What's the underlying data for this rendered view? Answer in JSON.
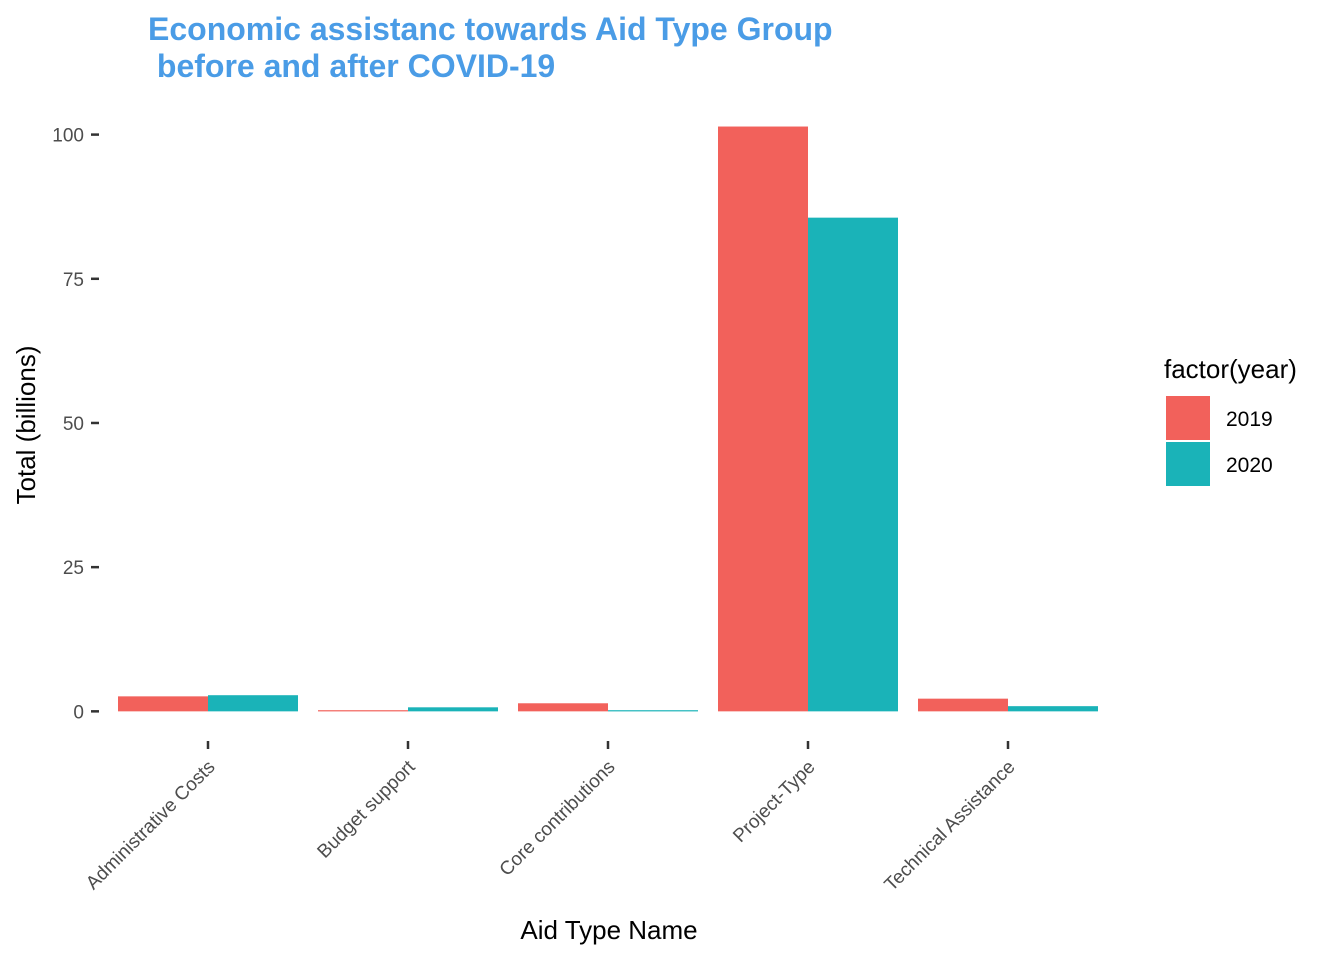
{
  "chart_data": {
    "type": "bar",
    "title_lines": [
      "Economic assistanc towards Aid Type Group",
      " before and after COVID-19"
    ],
    "title_color": "#4A9CE6",
    "xlabel": "Aid Type Name",
    "ylabel": "Total (billions)",
    "categories": [
      "Administrative Costs",
      "Budget support",
      "Core contributions",
      "Project-Type",
      "Technical Assistance"
    ],
    "ylim": [
      -1.5,
      106
    ],
    "yticks": [
      0,
      25,
      50,
      75,
      100
    ],
    "ytick_labels": [
      "0",
      "25",
      "50",
      "75",
      "100"
    ],
    "grid": false,
    "legend": {
      "title": "factor(year)",
      "position": "right"
    },
    "series": [
      {
        "name": "2019",
        "color": "#F2615B",
        "values": [
          2.6,
          0.2,
          1.4,
          101.4,
          2.2
        ]
      },
      {
        "name": "2020",
        "color": "#1AB3B8",
        "values": [
          2.8,
          0.7,
          0.2,
          85.6,
          0.9
        ]
      }
    ]
  }
}
